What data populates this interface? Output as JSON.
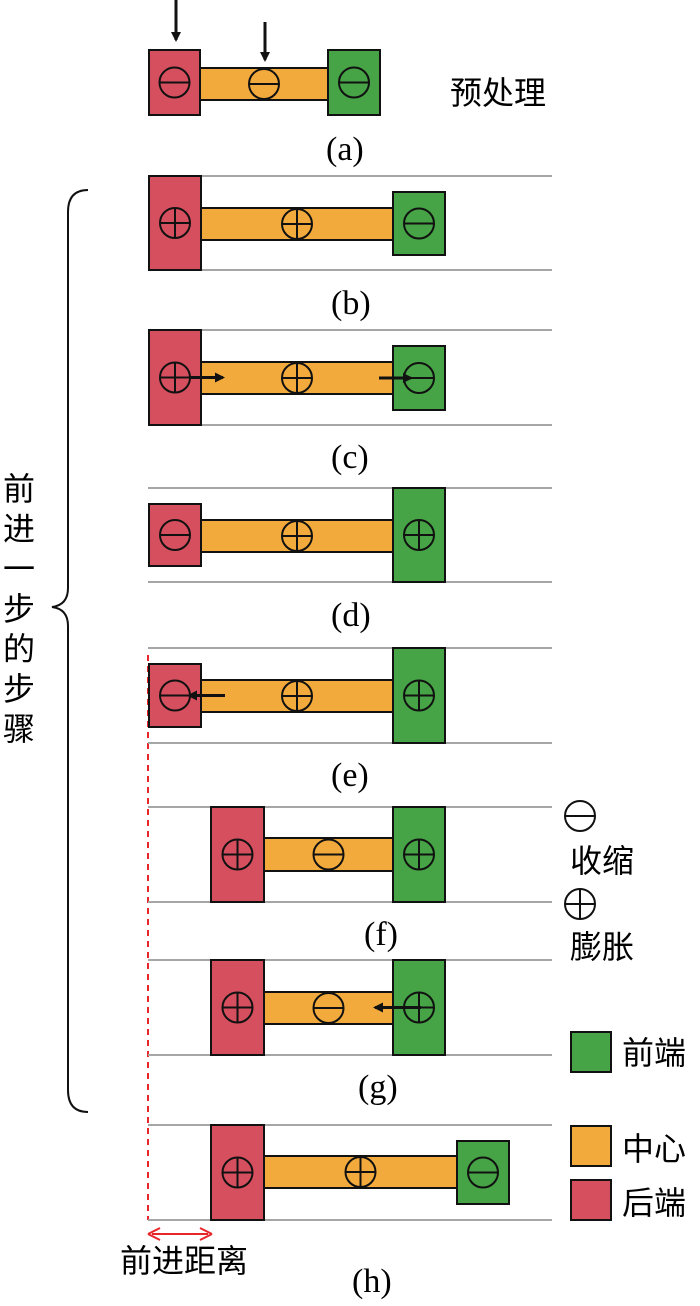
{
  "title_label": "预处理",
  "bracket_label": [
    "前",
    "进",
    "一",
    "步",
    "的",
    "步",
    "骤"
  ],
  "distance_label": "前进距离",
  "colors": {
    "rear": "#d64f5e",
    "center": "#f2aa3c",
    "front": "#46a346",
    "rail": "#a6a6a6",
    "dashed": "#e8262a",
    "stroke": "#111111"
  },
  "stages": [
    {
      "label": "(a)",
      "rear": "contract",
      "center": "contract",
      "front": "contract",
      "center_len": "short",
      "arrows": [
        "rear_push",
        "center_push"
      ]
    },
    {
      "label": "(b)",
      "rear": "expand",
      "center": "expand",
      "front": "contract",
      "center_len": "short",
      "arrows": []
    },
    {
      "label": "(c)",
      "rear": "expand",
      "center": "expand",
      "front": "contract",
      "center_len": "short",
      "arrows": [
        "rear_right",
        "front_right"
      ]
    },
    {
      "label": "(d)",
      "rear": "contract",
      "center": "expand",
      "front": "expand",
      "center_len": "short",
      "arrows": []
    },
    {
      "label": "(e)",
      "rear": "contract",
      "center": "expand",
      "front": "expand",
      "center_len": "short",
      "arrows": [
        "rear_left"
      ]
    },
    {
      "label": "(f)",
      "rear": "expand",
      "center": "contract",
      "front": "expand",
      "center_len": "contracted",
      "arrows": []
    },
    {
      "label": "(g)",
      "rear": "expand",
      "center": "contract",
      "front": "expand",
      "center_len": "contracted",
      "arrows": [
        "front_left"
      ]
    },
    {
      "label": "(h)",
      "rear": "expand",
      "center": "expand",
      "front": "contract",
      "center_len": "shifted",
      "arrows": []
    }
  ],
  "legend": {
    "contract_symbol": "contract",
    "contract_label": "收缩",
    "expand_symbol": "expand",
    "expand_label": "膨胀",
    "front_label": "前端",
    "center_label": "中心",
    "rear_label": "后端"
  }
}
